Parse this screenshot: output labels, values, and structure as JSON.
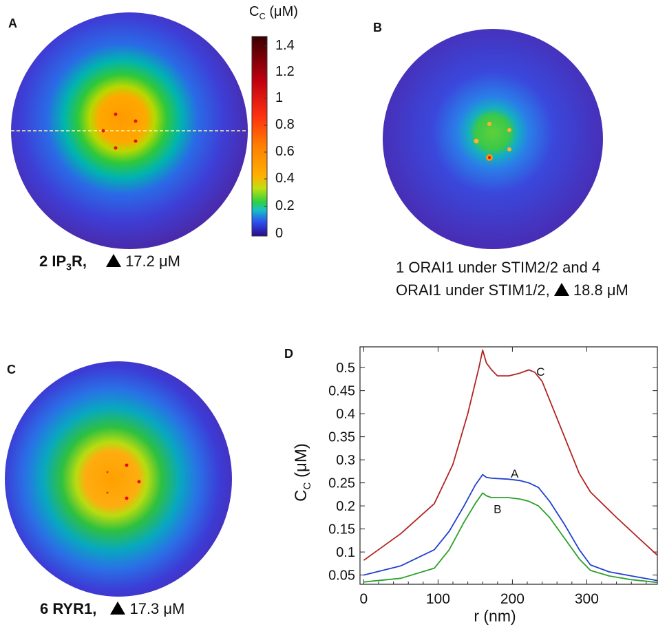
{
  "panels": {
    "A": {
      "letter": "A",
      "caption_bold_prefix": "2 IP",
      "caption_bold_sub": "3",
      "caption_bold_suffix": "R,",
      "peak": "17.2 μM"
    },
    "B": {
      "letter": "B",
      "caption_line1": "1 ORAI1 under STIM2/2 and 4",
      "caption_line2": "ORAI1 under STIM1/2,",
      "peak": "18.8 μM"
    },
    "C": {
      "letter": "C",
      "caption_bold": "6 RYR1,",
      "peak": "17.3 μM"
    },
    "D": {
      "letter": "D"
    }
  },
  "colorbar": {
    "title": "C",
    "title_sub": "C",
    "title_unit": " (μM)",
    "ticks": [
      "1.4",
      "1.2",
      "1",
      "0.8",
      "0.6",
      "0.4",
      "0.2",
      "0"
    ]
  },
  "chart_data": {
    "type": "line",
    "title": "",
    "xlabel": "r (nm)",
    "ylabel": "C",
    "ylabel_sub": "C",
    "ylabel_unit": " (μM)",
    "xlim": [
      -5,
      395
    ],
    "ylim": [
      0.03,
      0.545
    ],
    "xticks": [
      0,
      100,
      200,
      300
    ],
    "yticks": [
      0.05,
      0.1,
      0.15,
      0.2,
      0.25,
      0.3,
      0.35,
      0.4,
      0.45,
      0.5
    ],
    "ytick_labels": [
      "0.05",
      "0.1",
      "0.15",
      "0.2",
      "0.25",
      "0.3",
      "0.35",
      "0.4",
      "0.45",
      "0.5"
    ],
    "series": [
      {
        "name": "C",
        "color": "#b22222",
        "points": [
          [
            0,
            0.082
          ],
          [
            50,
            0.14
          ],
          [
            95,
            0.205
          ],
          [
            120,
            0.29
          ],
          [
            140,
            0.4
          ],
          [
            155,
            0.5
          ],
          [
            160,
            0.538
          ],
          [
            165,
            0.51
          ],
          [
            172,
            0.495
          ],
          [
            180,
            0.482
          ],
          [
            195,
            0.482
          ],
          [
            210,
            0.488
          ],
          [
            222,
            0.495
          ],
          [
            230,
            0.49
          ],
          [
            240,
            0.47
          ],
          [
            255,
            0.41
          ],
          [
            270,
            0.35
          ],
          [
            290,
            0.27
          ],
          [
            305,
            0.23
          ],
          [
            340,
            0.175
          ],
          [
            370,
            0.13
          ],
          [
            395,
            0.093
          ]
        ]
      },
      {
        "name": "A",
        "color": "#1f3fd0",
        "points": [
          [
            0,
            0.05
          ],
          [
            50,
            0.07
          ],
          [
            95,
            0.105
          ],
          [
            115,
            0.145
          ],
          [
            135,
            0.2
          ],
          [
            150,
            0.245
          ],
          [
            160,
            0.268
          ],
          [
            165,
            0.262
          ],
          [
            172,
            0.26
          ],
          [
            195,
            0.258
          ],
          [
            210,
            0.255
          ],
          [
            222,
            0.25
          ],
          [
            235,
            0.24
          ],
          [
            250,
            0.21
          ],
          [
            270,
            0.16
          ],
          [
            290,
            0.105
          ],
          [
            305,
            0.072
          ],
          [
            330,
            0.057
          ],
          [
            360,
            0.048
          ],
          [
            395,
            0.038
          ]
        ]
      },
      {
        "name": "B",
        "color": "#2aa02a",
        "points": [
          [
            0,
            0.035
          ],
          [
            50,
            0.043
          ],
          [
            95,
            0.065
          ],
          [
            115,
            0.105
          ],
          [
            135,
            0.165
          ],
          [
            150,
            0.205
          ],
          [
            160,
            0.228
          ],
          [
            165,
            0.222
          ],
          [
            172,
            0.218
          ],
          [
            195,
            0.218
          ],
          [
            210,
            0.215
          ],
          [
            222,
            0.21
          ],
          [
            235,
            0.2
          ],
          [
            250,
            0.175
          ],
          [
            270,
            0.13
          ],
          [
            290,
            0.085
          ],
          [
            305,
            0.06
          ],
          [
            330,
            0.048
          ],
          [
            360,
            0.04
          ],
          [
            395,
            0.034
          ]
        ]
      }
    ],
    "annotations": [
      {
        "text": "C",
        "x": 238,
        "y": 0.493
      },
      {
        "text": "A",
        "x": 203,
        "y": 0.272
      },
      {
        "text": "B",
        "x": 180,
        "y": 0.195
      }
    ]
  }
}
